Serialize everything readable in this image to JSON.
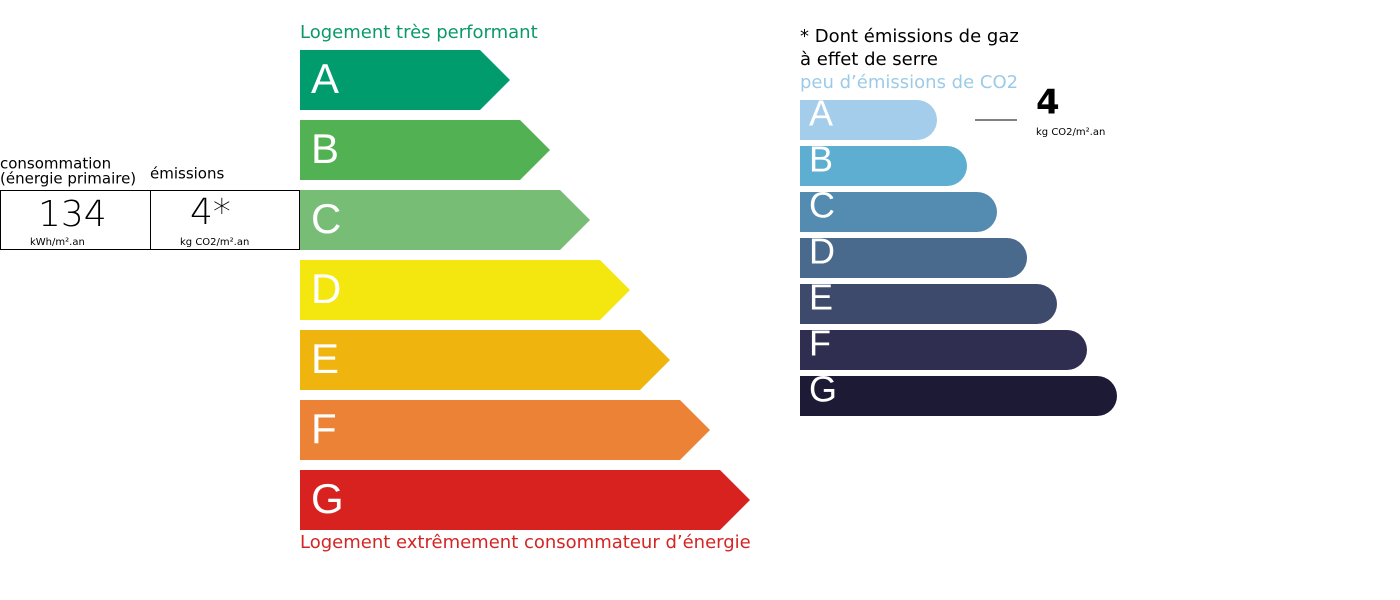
{
  "summary": {
    "consumption_label": [
      "consommation",
      "(énergie primaire)"
    ],
    "emissions_label": "émissions",
    "consumption_value": "134",
    "consumption_unit": "kWh/m².an",
    "emissions_value": "4*",
    "emissions_unit": "kg CO2/m².an"
  },
  "energy": {
    "top_label": "Logement très performant",
    "bottom_label": "Logement extrêmement consommateur d’énergie",
    "classes": [
      {
        "letter": "A",
        "color": "#009c6d"
      },
      {
        "letter": "B",
        "color": "#52b153"
      },
      {
        "letter": "C",
        "color": "#78bd76"
      },
      {
        "letter": "D",
        "color": "#f4e70f"
      },
      {
        "letter": "E",
        "color": "#f0b40f"
      },
      {
        "letter": "F",
        "color": "#eb8235"
      },
      {
        "letter": "G",
        "color": "#d7221f"
      }
    ]
  },
  "ges": {
    "note": [
      "* Dont émissions de gaz",
      "à effet de serre"
    ],
    "top_label": "peu d’émissions de CO2",
    "value": "4",
    "unit": "kg CO2/m².an",
    "classes": [
      {
        "letter": "A",
        "color": "#a4cdeb"
      },
      {
        "letter": "B",
        "color": "#5eaed1"
      },
      {
        "letter": "C",
        "color": "#548bb0"
      },
      {
        "letter": "D",
        "color": "#4a6a8d"
      },
      {
        "letter": "E",
        "color": "#3e4a6c"
      },
      {
        "letter": "F",
        "color": "#2f2d50"
      },
      {
        "letter": "G",
        "color": "#1d1a36"
      }
    ]
  }
}
